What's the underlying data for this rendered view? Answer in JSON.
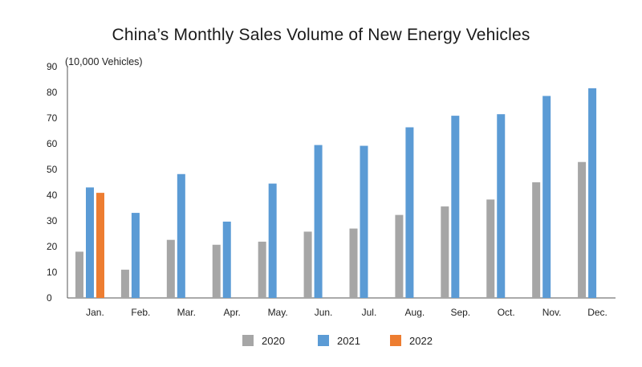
{
  "chart_data": {
    "type": "bar",
    "title": "China’s Monthly Sales Volume of New Energy Vehicles",
    "ylabel": "(10,000 Vehicles)",
    "xlabel": "",
    "ylim": [
      0,
      90
    ],
    "yticks": [
      0,
      10,
      20,
      30,
      40,
      50,
      60,
      70,
      80,
      90
    ],
    "grid": false,
    "legend_position": "bottom",
    "categories": [
      "Jan.",
      "Feb.",
      "Mar.",
      "Apr.",
      "May.",
      "Jun.",
      "Jul.",
      "Aug.",
      "Sep.",
      "Oct.",
      "Nov.",
      "Dec."
    ],
    "series": [
      {
        "name": "2020",
        "color": "#a6a6a6",
        "values": [
          18,
          11,
          22.6,
          20.7,
          21.9,
          25.8,
          27,
          32.3,
          35.6,
          38.3,
          45,
          52.9
        ]
      },
      {
        "name": "2021",
        "color": "#5b9bd5",
        "values": [
          43,
          33.1,
          48.2,
          29.7,
          44.5,
          59.5,
          59.2,
          66.4,
          70.9,
          71.5,
          78.6,
          81.6
        ]
      },
      {
        "name": "2022",
        "color": "#ed7d31",
        "values": [
          40.9,
          null,
          null,
          null,
          null,
          null,
          null,
          null,
          null,
          null,
          null,
          null
        ]
      }
    ]
  }
}
